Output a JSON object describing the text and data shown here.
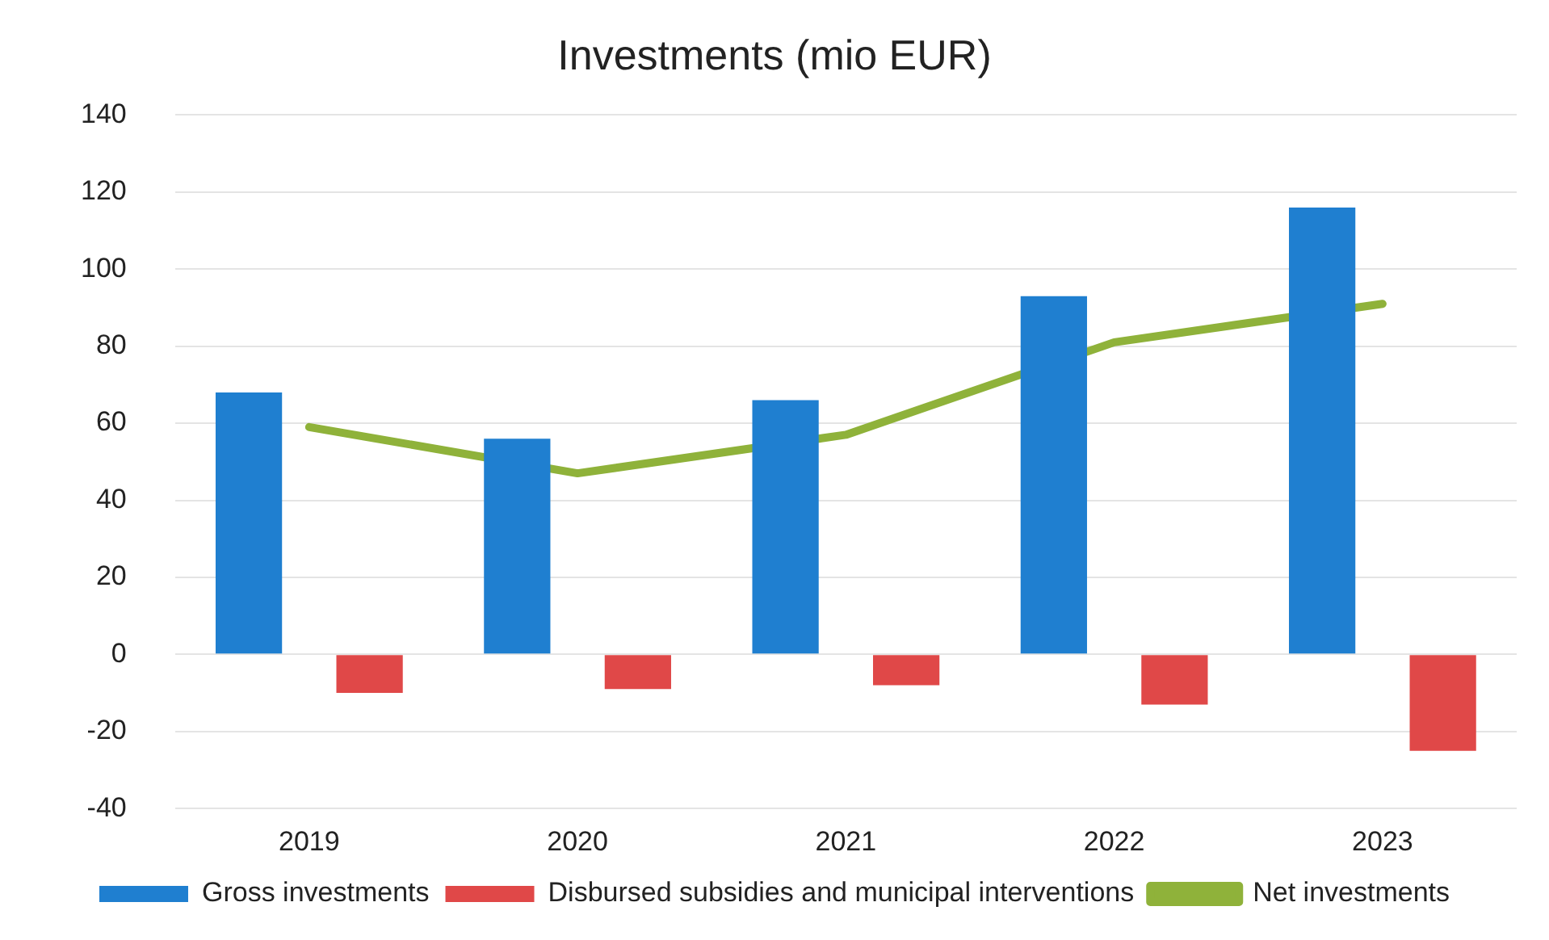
{
  "chart_data": {
    "type": "bar",
    "title": "Investments (mio EUR)",
    "categories": [
      "2019",
      "2020",
      "2021",
      "2022",
      "2023"
    ],
    "series": [
      {
        "name": "Gross investments",
        "color": "#1f7fd0",
        "values": [
          68,
          56,
          66,
          93,
          116
        ]
      },
      {
        "name": "Disbursed subsidies and municipal interventions",
        "color": "#e04848",
        "values": [
          -10,
          -9,
          -8,
          -13,
          -25
        ]
      },
      {
        "name": "Net investments",
        "type": "line",
        "color": "#8fb23a",
        "values": [
          59,
          47,
          57,
          81,
          91
        ]
      }
    ],
    "ylim": [
      -40,
      140
    ],
    "yticks": [
      -40,
      -20,
      0,
      20,
      40,
      60,
      80,
      100,
      120,
      140
    ],
    "grid": "y",
    "legend": "bottom",
    "marker": "none"
  }
}
